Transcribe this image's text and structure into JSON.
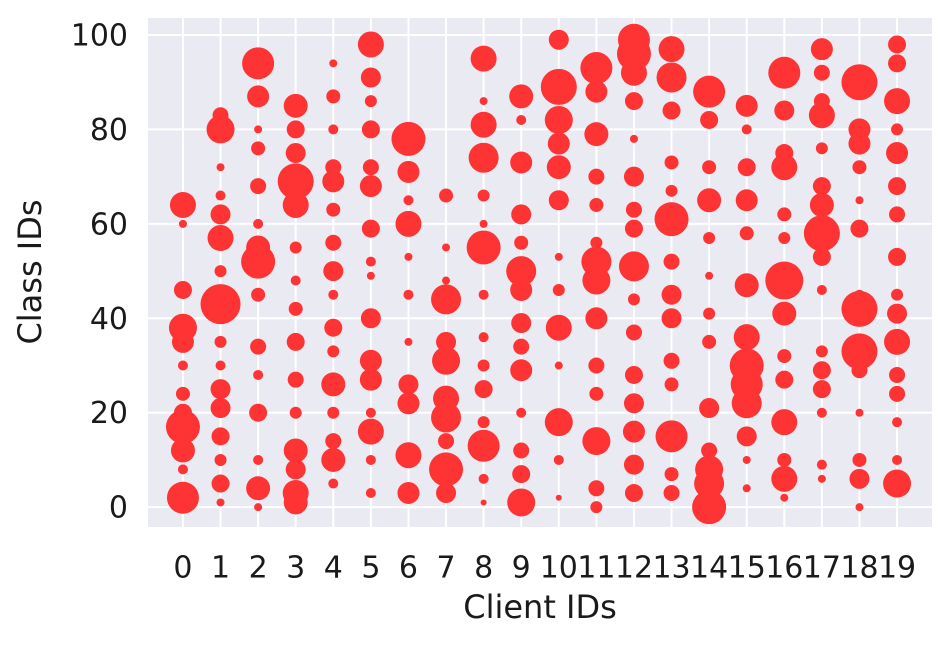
{
  "chart_data": {
    "type": "scatter",
    "x_label": "Client IDs",
    "y_label": "Class IDs",
    "color": "#fe3333",
    "grid": true,
    "xlim": [
      -0.93,
      19.93
    ],
    "ylim": [
      -4.2,
      103.6
    ],
    "xticks": [
      0,
      1,
      2,
      3,
      4,
      5,
      6,
      7,
      8,
      9,
      10,
      11,
      12,
      13,
      14,
      15,
      16,
      17,
      18,
      19
    ],
    "yticks": [
      0,
      20,
      40,
      60,
      80,
      100
    ],
    "x": [
      0,
      0,
      0,
      0,
      0,
      0,
      0,
      0,
      0,
      0,
      0,
      0,
      1,
      1,
      1,
      1,
      1,
      1,
      1,
      1,
      1,
      1,
      1,
      1,
      1,
      1,
      1,
      1,
      2,
      2,
      2,
      2,
      2,
      2,
      2,
      2,
      2,
      2,
      2,
      2,
      2,
      2,
      2,
      3,
      3,
      3,
      3,
      3,
      3,
      3,
      3,
      3,
      3,
      3,
      3,
      3,
      3,
      3,
      4,
      4,
      4,
      4,
      4,
      4,
      4,
      4,
      4,
      4,
      4,
      4,
      4,
      4,
      4,
      4,
      5,
      5,
      5,
      5,
      5,
      5,
      5,
      5,
      5,
      5,
      5,
      5,
      5,
      5,
      5,
      5,
      6,
      6,
      6,
      6,
      6,
      6,
      6,
      6,
      6,
      6,
      6,
      7,
      7,
      7,
      7,
      7,
      7,
      7,
      7,
      7,
      7,
      7,
      8,
      8,
      8,
      8,
      8,
      8,
      8,
      8,
      8,
      8,
      8,
      8,
      8,
      8,
      8,
      9,
      9,
      9,
      9,
      9,
      9,
      9,
      9,
      9,
      9,
      9,
      9,
      9,
      9,
      10,
      10,
      10,
      10,
      10,
      10,
      10,
      10,
      10,
      10,
      10,
      10,
      10,
      11,
      11,
      11,
      11,
      11,
      11,
      11,
      11,
      11,
      11,
      11,
      11,
      11,
      11,
      12,
      12,
      12,
      12,
      12,
      12,
      12,
      12,
      12,
      12,
      12,
      12,
      12,
      12,
      12,
      12,
      13,
      13,
      13,
      13,
      13,
      13,
      13,
      13,
      13,
      13,
      13,
      13,
      13,
      13,
      14,
      14,
      14,
      14,
      14,
      14,
      14,
      14,
      14,
      14,
      14,
      14,
      14,
      15,
      15,
      15,
      15,
      15,
      15,
      15,
      15,
      15,
      15,
      15,
      15,
      15,
      16,
      16,
      16,
      16,
      16,
      16,
      16,
      16,
      16,
      16,
      16,
      16,
      16,
      16,
      17,
      17,
      17,
      17,
      17,
      17,
      17,
      17,
      17,
      17,
      17,
      17,
      17,
      17,
      17,
      17,
      18,
      18,
      18,
      18,
      18,
      18,
      18,
      18,
      18,
      18,
      18,
      18,
      18,
      18,
      19,
      19,
      19,
      19,
      19,
      19,
      19,
      19,
      19,
      19,
      19,
      19,
      19,
      19,
      19,
      19
    ],
    "values": [
      64,
      60,
      46,
      38,
      35,
      30,
      24,
      20,
      17,
      12,
      8,
      2,
      83,
      80,
      72,
      66,
      62,
      57,
      50,
      43,
      35,
      30,
      25,
      21,
      15,
      10,
      5,
      1,
      94,
      87,
      80,
      76,
      68,
      60,
      55,
      52,
      45,
      34,
      28,
      20,
      10,
      4,
      0,
      85,
      80,
      75,
      69,
      64,
      55,
      48,
      42,
      35,
      27,
      20,
      12,
      8,
      3,
      1,
      94,
      87,
      80,
      72,
      69,
      63,
      56,
      50,
      45,
      38,
      33,
      26,
      20,
      14,
      10,
      5,
      98,
      91,
      86,
      80,
      72,
      68,
      59,
      52,
      49,
      40,
      31,
      27,
      20,
      16,
      10,
      3,
      78,
      71,
      65,
      60,
      53,
      45,
      35,
      26,
      22,
      11,
      3,
      66,
      55,
      48,
      44,
      35,
      31,
      23,
      19,
      14,
      8,
      3,
      95,
      86,
      81,
      74,
      66,
      60,
      55,
      45,
      36,
      30,
      25,
      18,
      13,
      6,
      1,
      87,
      82,
      73,
      62,
      56,
      50,
      46,
      39,
      34,
      29,
      20,
      12,
      7,
      1,
      99,
      89,
      82,
      77,
      72,
      65,
      53,
      46,
      38,
      30,
      18,
      10,
      2,
      93,
      88,
      79,
      70,
      64,
      56,
      52,
      48,
      40,
      30,
      24,
      14,
      4,
      0,
      99,
      96,
      92,
      86,
      78,
      70,
      63,
      59,
      51,
      44,
      37,
      28,
      22,
      16,
      9,
      3,
      97,
      91,
      84,
      73,
      67,
      61,
      52,
      45,
      40,
      31,
      26,
      15,
      7,
      3,
      88,
      82,
      72,
      65,
      57,
      49,
      41,
      35,
      21,
      12,
      8,
      5,
      0,
      85,
      80,
      72,
      65,
      58,
      47,
      36,
      30,
      26,
      22,
      15,
      10,
      4,
      92,
      84,
      75,
      72,
      62,
      57,
      48,
      41,
      32,
      27,
      18,
      10,
      6,
      2,
      97,
      92,
      86,
      83,
      76,
      68,
      64,
      58,
      53,
      46,
      33,
      29,
      25,
      20,
      9,
      6,
      90,
      80,
      77,
      72,
      65,
      59,
      45,
      42,
      33,
      29,
      20,
      10,
      6,
      0,
      98,
      94,
      86,
      80,
      75,
      68,
      62,
      53,
      45,
      41,
      35,
      28,
      24,
      18,
      10,
      5
    ],
    "sizes": [
      13,
      4,
      9,
      14,
      11,
      5,
      7,
      9,
      17,
      12,
      5,
      16,
      8,
      14,
      4,
      5,
      10,
      13,
      6,
      20,
      6,
      5,
      10,
      10,
      9,
      6,
      9,
      4,
      16,
      11,
      4,
      7,
      8,
      5,
      12,
      17,
      7,
      8,
      5,
      9,
      5,
      12,
      4,
      12,
      9,
      10,
      18,
      13,
      6,
      5,
      7,
      9,
      8,
      6,
      12,
      10,
      13,
      12,
      4,
      7,
      5,
      8,
      11,
      7,
      8,
      10,
      5,
      9,
      6,
      12,
      6,
      8,
      12,
      5,
      13,
      10,
      6,
      9,
      8,
      11,
      9,
      5,
      4,
      10,
      11,
      11,
      5,
      13,
      5,
      5,
      17,
      11,
      5,
      13,
      4,
      5,
      4,
      10,
      11,
      13,
      11,
      7,
      4,
      4,
      15,
      10,
      14,
      13,
      15,
      8,
      17,
      10,
      13,
      4,
      13,
      15,
      6,
      4,
      17,
      5,
      5,
      6,
      9,
      6,
      16,
      5,
      3,
      12,
      5,
      11,
      10,
      7,
      15,
      11,
      10,
      8,
      11,
      5,
      8,
      9,
      14,
      10,
      18,
      14,
      11,
      12,
      10,
      4,
      6,
      13,
      4,
      14,
      5,
      3,
      16,
      11,
      12,
      8,
      7,
      6,
      15,
      14,
      11,
      8,
      7,
      14,
      8,
      6,
      16,
      17,
      13,
      9,
      4,
      10,
      8,
      9,
      15,
      6,
      8,
      9,
      10,
      11,
      10,
      9,
      13,
      15,
      9,
      7,
      6,
      17,
      8,
      10,
      10,
      8,
      7,
      16,
      7,
      8,
      16,
      9,
      7,
      12,
      6,
      4,
      6,
      7,
      10,
      8,
      14,
      15,
      17,
      11,
      5,
      9,
      11,
      7,
      12,
      13,
      17,
      16,
      15,
      10,
      4,
      4,
      16,
      10,
      9,
      13,
      7,
      6,
      19,
      12,
      7,
      9,
      13,
      7,
      13,
      4,
      11,
      8,
      8,
      13,
      6,
      9,
      12,
      18,
      9,
      5,
      6,
      9,
      9,
      5,
      5,
      4,
      18,
      11,
      11,
      7,
      4,
      9,
      5,
      18,
      18,
      8,
      4,
      7,
      10,
      4,
      9,
      9,
      13,
      6,
      11,
      9,
      8,
      9,
      6,
      10,
      13,
      8,
      8,
      5,
      5,
      14
    ]
  }
}
